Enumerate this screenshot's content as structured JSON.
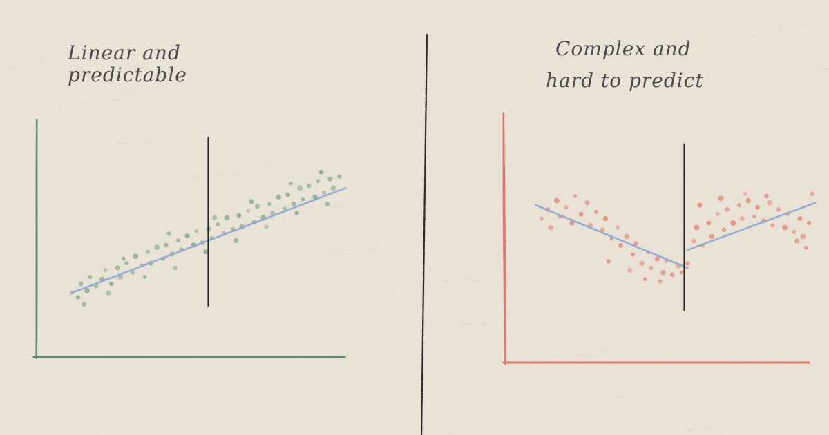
{
  "colors": {
    "background": "#ece5d6",
    "left_accent": "#5e8d73",
    "right_accent": "#e2766a",
    "fit_line": "#8aa9d9",
    "ink": "#2b2b2b"
  },
  "chart_data": [
    {
      "type": "scatter",
      "title": "Linear and predictable",
      "title_lines": [
        "Linear and",
        "predictable"
      ],
      "xlabel": "",
      "ylabel": "",
      "xlim": [
        0,
        10
      ],
      "ylim": [
        0,
        10
      ],
      "grid": false,
      "axis_color": "#5e8d73",
      "point_color": "#87a98f",
      "fit_type": "linear",
      "fit": {
        "x0": 1.0,
        "y0": 2.3,
        "x1": 10.0,
        "y1": 6.9
      },
      "divider_x": 5.5,
      "points": [
        [
          1.0,
          2.3
        ],
        [
          1.2,
          2.1
        ],
        [
          1.3,
          2.7
        ],
        [
          1.5,
          2.4
        ],
        [
          1.6,
          3.0
        ],
        [
          1.8,
          2.6
        ],
        [
          2.0,
          2.9
        ],
        [
          2.1,
          3.3
        ],
        [
          2.3,
          2.7
        ],
        [
          2.5,
          3.4
        ],
        [
          2.6,
          3.0
        ],
        [
          2.8,
          3.6
        ],
        [
          3.0,
          3.2
        ],
        [
          3.1,
          3.9
        ],
        [
          3.3,
          3.5
        ],
        [
          3.5,
          4.1
        ],
        [
          3.6,
          3.6
        ],
        [
          3.8,
          4.3
        ],
        [
          4.0,
          3.8
        ],
        [
          4.1,
          4.4
        ],
        [
          4.3,
          4.0
        ],
        [
          4.5,
          4.6
        ],
        [
          4.6,
          4.2
        ],
        [
          4.8,
          4.8
        ],
        [
          5.0,
          4.4
        ],
        [
          5.1,
          5.0
        ],
        [
          5.3,
          4.5
        ],
        [
          5.5,
          5.1
        ],
        [
          5.6,
          4.7
        ],
        [
          5.8,
          5.3
        ],
        [
          6.0,
          4.9
        ],
        [
          6.1,
          5.6
        ],
        [
          6.3,
          5.1
        ],
        [
          6.5,
          5.7
        ],
        [
          6.6,
          5.2
        ],
        [
          6.8,
          5.9
        ],
        [
          7.0,
          5.4
        ],
        [
          7.1,
          6.1
        ],
        [
          7.3,
          5.6
        ],
        [
          7.5,
          6.2
        ],
        [
          7.6,
          5.8
        ],
        [
          7.8,
          6.5
        ],
        [
          8.0,
          6.0
        ],
        [
          8.1,
          6.6
        ],
        [
          8.3,
          6.2
        ],
        [
          8.5,
          6.9
        ],
        [
          8.6,
          6.4
        ],
        [
          8.8,
          7.0
        ],
        [
          9.0,
          6.5
        ],
        [
          9.1,
          7.2
        ],
        [
          9.3,
          6.7
        ],
        [
          9.5,
          7.3
        ],
        [
          9.6,
          6.9
        ],
        [
          9.8,
          7.4
        ],
        [
          1.4,
          1.8
        ],
        [
          2.2,
          2.3
        ],
        [
          3.4,
          3.0
        ],
        [
          4.4,
          3.4
        ],
        [
          5.4,
          4.1
        ],
        [
          6.4,
          4.6
        ],
        [
          7.4,
          5.2
        ],
        [
          8.4,
          5.8
        ],
        [
          9.4,
          6.2
        ],
        [
          2.7,
          3.8
        ],
        [
          4.2,
          4.9
        ],
        [
          5.7,
          5.6
        ],
        [
          6.9,
          6.3
        ],
        [
          8.2,
          7.1
        ],
        [
          9.2,
          7.6
        ]
      ]
    },
    {
      "type": "scatter",
      "title": "Complex and hard to predict",
      "title_lines": [
        "Complex and",
        "hard to predict"
      ],
      "xlabel": "",
      "ylabel": "",
      "xlim": [
        0,
        10
      ],
      "ylim": [
        0,
        10
      ],
      "grid": false,
      "axis_color": "#e2766a",
      "point_color": "#e58676",
      "fit_type": "piecewise-linear",
      "fit": [
        {
          "x0": 0.8,
          "y0": 6.4,
          "x1": 5.8,
          "y1": 3.6
        },
        {
          "x0": 5.8,
          "y0": 4.4,
          "x1": 10.0,
          "y1": 6.5
        }
      ],
      "divider_x": 5.8,
      "points": [
        [
          1.0,
          5.8
        ],
        [
          1.2,
          6.2
        ],
        [
          1.3,
          5.4
        ],
        [
          1.5,
          6.6
        ],
        [
          1.6,
          5.9
        ],
        [
          1.8,
          6.3
        ],
        [
          2.0,
          5.6
        ],
        [
          2.1,
          6.8
        ],
        [
          2.3,
          6.0
        ],
        [
          2.5,
          6.5
        ],
        [
          2.6,
          5.5
        ],
        [
          2.8,
          6.1
        ],
        [
          3.0,
          5.3
        ],
        [
          3.1,
          5.8
        ],
        [
          3.3,
          4.9
        ],
        [
          3.5,
          5.4
        ],
        [
          3.6,
          4.6
        ],
        [
          3.8,
          5.0
        ],
        [
          4.0,
          4.2
        ],
        [
          4.1,
          4.7
        ],
        [
          4.3,
          3.8
        ],
        [
          4.5,
          4.3
        ],
        [
          4.6,
          3.6
        ],
        [
          4.8,
          4.0
        ],
        [
          5.0,
          3.4
        ],
        [
          5.1,
          3.9
        ],
        [
          5.3,
          3.3
        ],
        [
          5.5,
          3.7
        ],
        [
          5.6,
          3.4
        ],
        [
          5.8,
          3.8
        ],
        [
          6.0,
          4.8
        ],
        [
          6.1,
          5.4
        ],
        [
          6.3,
          4.6
        ],
        [
          6.5,
          5.6
        ],
        [
          6.6,
          5.0
        ],
        [
          6.8,
          6.0
        ],
        [
          7.0,
          5.3
        ],
        [
          7.1,
          6.2
        ],
        [
          7.3,
          5.6
        ],
        [
          7.5,
          6.4
        ],
        [
          7.6,
          5.8
        ],
        [
          7.8,
          6.6
        ],
        [
          8.0,
          5.9
        ],
        [
          8.1,
          6.3
        ],
        [
          8.3,
          5.7
        ],
        [
          8.5,
          6.5
        ],
        [
          8.6,
          5.5
        ],
        [
          8.8,
          6.2
        ],
        [
          9.0,
          5.4
        ],
        [
          9.1,
          6.0
        ],
        [
          9.3,
          5.2
        ],
        [
          9.5,
          5.8
        ],
        [
          9.6,
          5.0
        ],
        [
          9.8,
          5.6
        ],
        [
          3.2,
          3.9
        ],
        [
          3.9,
          3.5
        ],
        [
          4.4,
          3.1
        ],
        [
          4.9,
          3.0
        ],
        [
          6.2,
          6.4
        ],
        [
          6.9,
          6.7
        ],
        [
          7.7,
          6.9
        ],
        [
          8.4,
          6.8
        ],
        [
          9.4,
          4.8
        ],
        [
          9.7,
          4.5
        ],
        [
          9.9,
          6.9
        ]
      ]
    }
  ]
}
